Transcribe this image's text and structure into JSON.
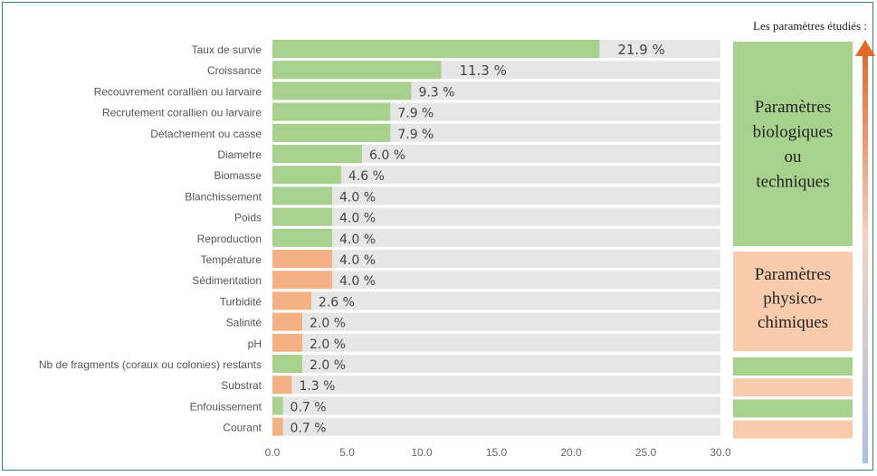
{
  "chart_data": {
    "type": "bar",
    "orientation": "horizontal",
    "categories": [
      "Taux de survie",
      "Croissance",
      "Recouvrement corallien ou larvaire",
      "Recrutement corallien ou larvaire",
      "Détachement ou casse",
      "Diametre",
      "Biomasse",
      "Blanchissement",
      "Poids",
      "Reproduction",
      "Température",
      "Sédimentation",
      "Turbidité",
      "Salinité",
      "pH",
      "Nb de fragments (coraux ou colonies) restants",
      "Substrat",
      "Enfouissement",
      "Courant"
    ],
    "values": [
      21.9,
      11.3,
      9.3,
      7.9,
      7.9,
      6.0,
      4.6,
      4.0,
      4.0,
      4.0,
      4.0,
      4.0,
      2.6,
      2.0,
      2.0,
      2.0,
      1.3,
      0.7,
      0.7
    ],
    "value_labels": [
      "21.9 %",
      "11.3 %",
      "9.3 %",
      "7.9 %",
      "7.9 %",
      "6.0 %",
      "4.6 %",
      "4.0 %",
      "4.0 %",
      "4.0 %",
      "4.0 %",
      "4.0 %",
      "2.6 %",
      "2.0 %",
      "2.0 %",
      "2.0 %",
      "1.3 %",
      "0.7 %",
      "0.7 %"
    ],
    "groups": [
      "bio",
      "bio",
      "bio",
      "bio",
      "bio",
      "bio",
      "bio",
      "bio",
      "bio",
      "bio",
      "phys",
      "phys",
      "phys",
      "phys",
      "phys",
      "bio",
      "phys",
      "bio",
      "phys"
    ],
    "xlim": [
      0,
      30
    ],
    "xticks": [
      "0.0",
      "5.0",
      "10.0",
      "15.0",
      "20.0",
      "25.0",
      "30.0"
    ],
    "grid": false,
    "side_panel": {
      "title": "Les paramètres étudiés :",
      "bio_label_lines": [
        "Paramètres",
        "biologiques",
        "ou",
        "techniques"
      ],
      "phys_label_lines": [
        "Paramètres",
        "physico-",
        "chimiques"
      ],
      "row_groups": [
        "bio",
        "phys",
        "bio",
        "phys"
      ]
    }
  },
  "colors": {
    "bio": "#a9d18e",
    "phys": "#f4b183",
    "bio_panel": "#a9d18e",
    "phys_panel": "#f8cbad",
    "track": "#e7e6e6",
    "frame": "#3f7f7a",
    "arrow_top": "#e06a2c",
    "arrow_bottom": "#a9bfe6"
  }
}
